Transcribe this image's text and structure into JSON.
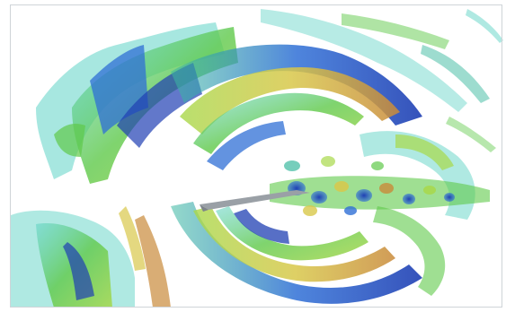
{
  "scene": {
    "colors": {
      "background": "#ffffff",
      "deep_blue": "#1f3fb3",
      "blue": "#2f6fd6",
      "cyan": "#5fd3c6",
      "teal": "#3cb9a0",
      "green": "#5fc94a",
      "lime": "#a8d84a",
      "yellow": "#d8c84a",
      "orange": "#c98a3a",
      "body": "#9aa0a6"
    }
  }
}
